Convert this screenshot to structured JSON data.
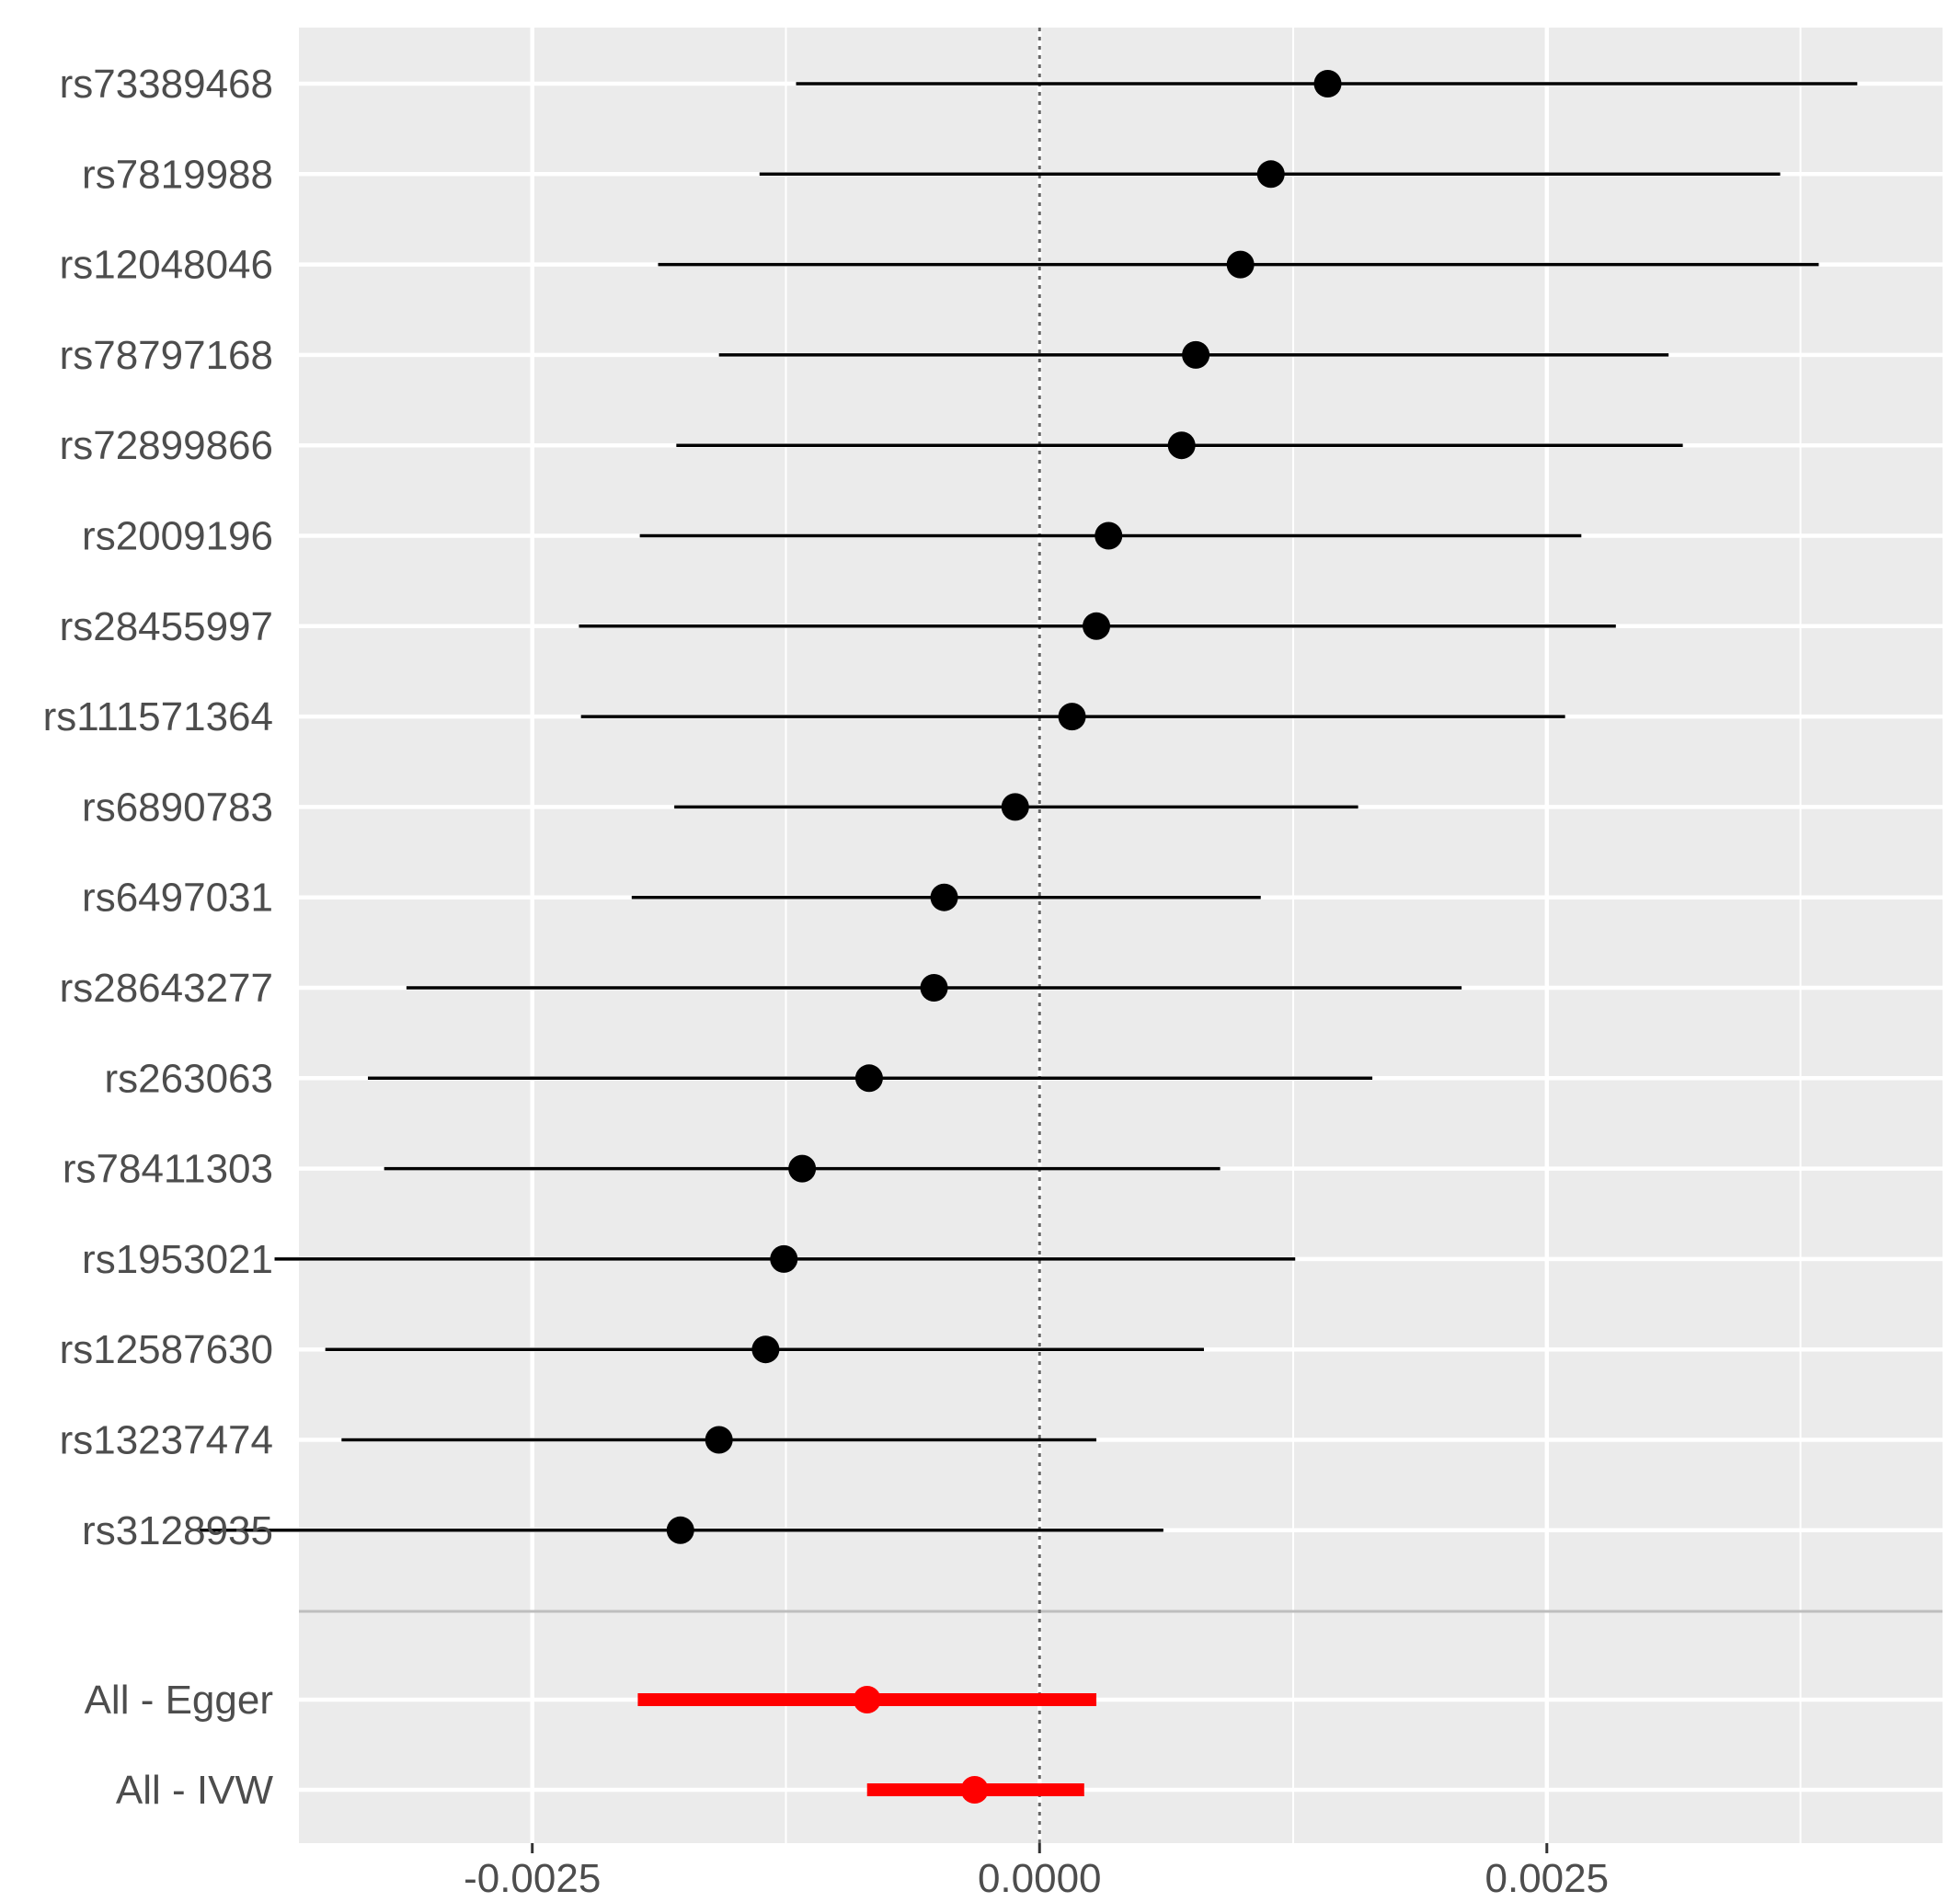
{
  "chart_data": {
    "type": "forest",
    "xlim": [
      -0.00365,
      0.00445
    ],
    "x_ticks": [
      -0.0025,
      0.0,
      0.0025
    ],
    "x_tick_labels": [
      "-0.0025",
      "0.0000",
      "0.0025"
    ],
    "reference_line": 0,
    "grid": true,
    "colors": {
      "panel": "#ebebeb",
      "grid": "#ffffff",
      "snp": "#000000",
      "summary": "#ff0000",
      "divider": "#bebebe",
      "reference": "#666666"
    },
    "snps": [
      {
        "label": "rs73389468",
        "b": 0.00142,
        "lo": -0.0012,
        "hi": 0.00403
      },
      {
        "label": "rs7819988",
        "b": 0.00114,
        "lo": -0.00138,
        "hi": 0.00365
      },
      {
        "label": "rs12048046",
        "b": 0.00099,
        "lo": -0.00188,
        "hi": 0.00384
      },
      {
        "label": "rs78797168",
        "b": 0.00077,
        "lo": -0.00158,
        "hi": 0.0031
      },
      {
        "label": "rs72899866",
        "b": 0.0007,
        "lo": -0.00179,
        "hi": 0.00317
      },
      {
        "label": "rs2009196",
        "b": 0.00034,
        "lo": -0.00197,
        "hi": 0.00267
      },
      {
        "label": "rs28455997",
        "b": 0.00028,
        "lo": -0.00227,
        "hi": 0.00284
      },
      {
        "label": "rs111571364",
        "b": 0.00016,
        "lo": -0.00226,
        "hi": 0.00259
      },
      {
        "label": "rs6890783",
        "b": -0.00012,
        "lo": -0.0018,
        "hi": 0.00157
      },
      {
        "label": "rs6497031",
        "b": -0.00047,
        "lo": -0.00201,
        "hi": 0.00109
      },
      {
        "label": "rs28643277",
        "b": -0.00052,
        "lo": -0.00312,
        "hi": 0.00208
      },
      {
        "label": "rs263063",
        "b": -0.00084,
        "lo": -0.00331,
        "hi": 0.00164
      },
      {
        "label": "rs78411303",
        "b": -0.00117,
        "lo": -0.00323,
        "hi": 0.00089
      },
      {
        "label": "rs1953021",
        "b": -0.00126,
        "lo": -0.00377,
        "hi": 0.00126
      },
      {
        "label": "rs12587630",
        "b": -0.00135,
        "lo": -0.00352,
        "hi": 0.00081
      },
      {
        "label": "rs13237474",
        "b": -0.00158,
        "lo": -0.00344,
        "hi": 0.00028
      },
      {
        "label": "rs3128935",
        "b": -0.00177,
        "lo": -0.00414,
        "hi": 0.00061
      }
    ],
    "summaries": [
      {
        "label": "All - Egger",
        "b": -0.00085,
        "lo": -0.00198,
        "hi": 0.00028
      },
      {
        "label": "All - IVW",
        "b": -0.00032,
        "lo": -0.00085,
        "hi": 0.00022
      }
    ]
  }
}
